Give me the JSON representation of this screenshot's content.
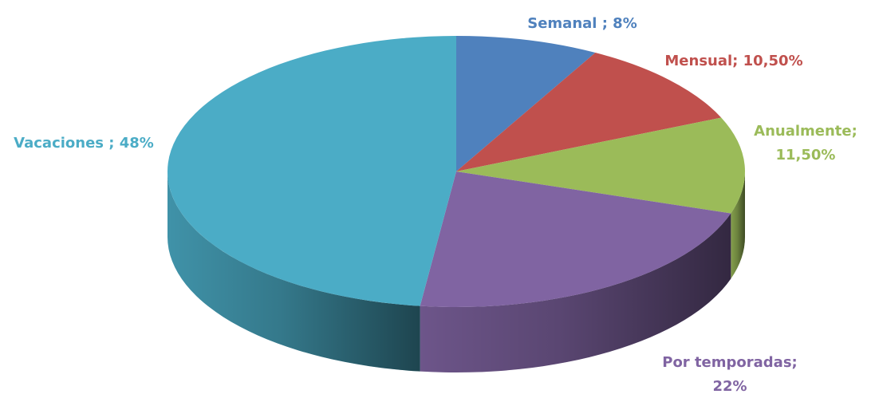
{
  "chart_data": {
    "type": "pie",
    "values": [
      8,
      10.5,
      11.5,
      22,
      48
    ],
    "value_labels": [
      [
        "Semanal ; 8%"
      ],
      [
        "Mensual; 10,50%"
      ],
      [
        "Anualmente;",
        "11,50%"
      ],
      [
        "Por temporadas;",
        "22%"
      ],
      [
        "Vacaciones ; 48%"
      ]
    ],
    "colors": [
      "#4f81bd",
      "#c0504d",
      "#9bbb59",
      "#8064a2",
      "#4bacc6"
    ]
  }
}
